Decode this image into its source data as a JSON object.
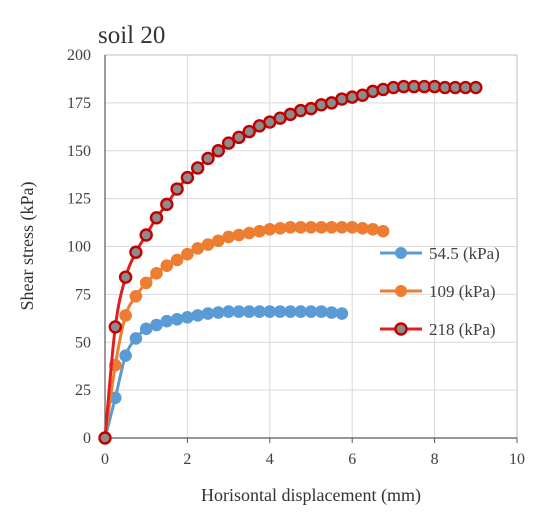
{
  "chart_data": {
    "type": "scatter",
    "title": "soil 20",
    "xlabel": "Horisontal displacement (mm)",
    "ylabel": "Shear stress (kPa)",
    "xlim": [
      0,
      10
    ],
    "ylim": [
      0,
      200
    ],
    "xticks": [
      "0",
      "2",
      "4",
      "6",
      "8",
      "10"
    ],
    "yticks": [
      "0",
      "25",
      "50",
      "75",
      "100",
      "125",
      "150",
      "175",
      "200"
    ],
    "grid": true,
    "legend_position": "right",
    "series": [
      {
        "name": "54.5 (kPa)",
        "color": "#5B9BD5",
        "points": [
          [
            0,
            0
          ],
          [
            0.25,
            21
          ],
          [
            0.5,
            43
          ],
          [
            0.75,
            52
          ],
          [
            1.0,
            57
          ],
          [
            1.25,
            59
          ],
          [
            1.5,
            61
          ],
          [
            1.75,
            62
          ],
          [
            2.0,
            63
          ],
          [
            2.25,
            64
          ],
          [
            2.5,
            65
          ],
          [
            2.75,
            65.5
          ],
          [
            3.0,
            66
          ],
          [
            3.25,
            66
          ],
          [
            3.5,
            66
          ],
          [
            3.75,
            66
          ],
          [
            4.0,
            66
          ],
          [
            4.25,
            66
          ],
          [
            4.5,
            66
          ],
          [
            4.75,
            66
          ],
          [
            5.0,
            66
          ],
          [
            5.25,
            66
          ],
          [
            5.5,
            65.5
          ],
          [
            5.75,
            65
          ]
        ]
      },
      {
        "name": "109 (kPa)",
        "color": "#ED7D31",
        "points": [
          [
            0,
            0
          ],
          [
            0.25,
            38
          ],
          [
            0.5,
            64
          ],
          [
            0.75,
            74
          ],
          [
            1.0,
            81
          ],
          [
            1.25,
            86
          ],
          [
            1.5,
            90
          ],
          [
            1.75,
            93
          ],
          [
            2.0,
            96
          ],
          [
            2.25,
            99
          ],
          [
            2.5,
            101
          ],
          [
            2.75,
            103
          ],
          [
            3.0,
            105
          ],
          [
            3.25,
            106
          ],
          [
            3.5,
            107
          ],
          [
            3.75,
            108
          ],
          [
            4.0,
            109
          ],
          [
            4.25,
            109.5
          ],
          [
            4.5,
            110
          ],
          [
            4.75,
            110
          ],
          [
            5.0,
            110
          ],
          [
            5.25,
            110
          ],
          [
            5.5,
            110
          ],
          [
            5.75,
            110
          ],
          [
            6.0,
            110
          ],
          [
            6.25,
            109.5
          ],
          [
            6.5,
            109
          ],
          [
            6.75,
            108
          ]
        ]
      },
      {
        "name": "218 (kPa)",
        "color": "#E02020",
        "points": [
          [
            0,
            0
          ],
          [
            0.25,
            58
          ],
          [
            0.5,
            84
          ],
          [
            0.75,
            97
          ],
          [
            1.0,
            106
          ],
          [
            1.25,
            115
          ],
          [
            1.5,
            122
          ],
          [
            1.75,
            130
          ],
          [
            2.0,
            136
          ],
          [
            2.25,
            141
          ],
          [
            2.5,
            146
          ],
          [
            2.75,
            150
          ],
          [
            3.0,
            154
          ],
          [
            3.25,
            157
          ],
          [
            3.5,
            160
          ],
          [
            3.75,
            163
          ],
          [
            4.0,
            165
          ],
          [
            4.25,
            167
          ],
          [
            4.5,
            169
          ],
          [
            4.75,
            171
          ],
          [
            5.0,
            172
          ],
          [
            5.25,
            174
          ],
          [
            5.5,
            175
          ],
          [
            5.75,
            177
          ],
          [
            6.0,
            178
          ],
          [
            6.25,
            179
          ],
          [
            6.5,
            181
          ],
          [
            6.75,
            182
          ],
          [
            7.0,
            183
          ],
          [
            7.25,
            183.5
          ],
          [
            7.5,
            183.5
          ],
          [
            7.75,
            183.5
          ],
          [
            8.0,
            183.5
          ],
          [
            8.25,
            183
          ],
          [
            8.5,
            183
          ],
          [
            8.75,
            183
          ],
          [
            9.0,
            183
          ]
        ]
      }
    ]
  }
}
